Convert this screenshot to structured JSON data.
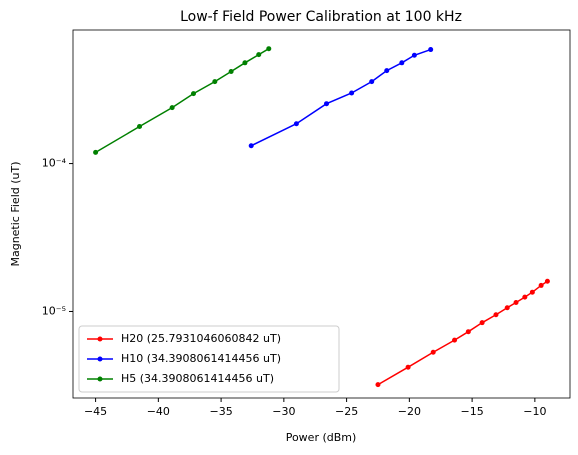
{
  "chart_data": {
    "type": "line",
    "title": "Low-f Field Power Calibration at 100 kHz",
    "xlabel": "Power (dBm)",
    "ylabel": "Magnetic Field (uT)",
    "log_y": true,
    "legend": "lower left",
    "xlim": [
      -46.8,
      -7.2
    ],
    "ylim": [
      2.6e-06,
      0.0008
    ],
    "xticks": [
      {
        "value": -45,
        "label": "−45"
      },
      {
        "value": -40,
        "label": "−40"
      },
      {
        "value": -35,
        "label": "−35"
      },
      {
        "value": -30,
        "label": "−30"
      },
      {
        "value": -25,
        "label": "−25"
      },
      {
        "value": -20,
        "label": "−20"
      },
      {
        "value": -15,
        "label": "−15"
      },
      {
        "value": -10,
        "label": "−10"
      }
    ],
    "yticks": [
      {
        "value": 1e-05,
        "label": "10⁻⁵"
      },
      {
        "value": 0.0001,
        "label": "10⁻⁴"
      }
    ],
    "series": [
      {
        "name": "H20 (25.7931046060842 uT)",
        "color": "#ff0000",
        "x": [
          -22.5,
          -20.1,
          -18.1,
          -16.4,
          -15.3,
          -14.2,
          -13.1,
          -12.2,
          -11.5,
          -10.8,
          -10.2,
          -9.5,
          -9.0
        ],
        "values": [
          3.2e-06,
          4.2e-06,
          5.3e-06,
          6.4e-06,
          7.3e-06,
          8.4e-06,
          9.5e-06,
          1.06e-05,
          1.15e-05,
          1.25e-05,
          1.35e-05,
          1.5e-05,
          1.6e-05
        ]
      },
      {
        "name": "H10 (34.3908061414456 uT)",
        "color": "#0000ff",
        "x": [
          -32.6,
          -29.0,
          -26.6,
          -24.6,
          -23.0,
          -21.8,
          -20.6,
          -19.6,
          -18.3
        ],
        "values": [
          0.000132,
          0.000186,
          0.000254,
          0.0003,
          0.000358,
          0.000425,
          0.00048,
          0.00054,
          0.00059
        ]
      },
      {
        "name": "H5 (34.3908061414456 uT)",
        "color": "#008000",
        "x": [
          -45.0,
          -41.5,
          -38.9,
          -37.2,
          -35.5,
          -34.2,
          -33.1,
          -32.0,
          -31.2
        ],
        "values": [
          0.000119,
          0.000178,
          0.000239,
          0.000297,
          0.000358,
          0.000419,
          0.00048,
          0.000545,
          0.000598
        ]
      }
    ]
  }
}
